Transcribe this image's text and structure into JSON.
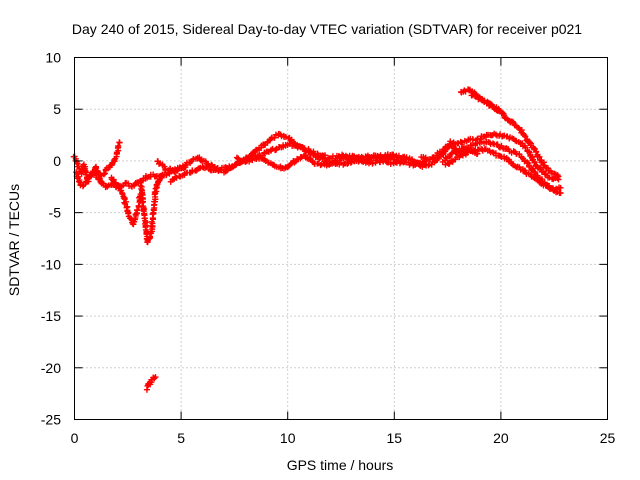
{
  "chart_data": {
    "type": "scatter",
    "title": "Day 240 of 2015, Sidereal Day-to-day VTEC variation (SDTVAR) for receiver p021",
    "xlabel": "GPS time / hours",
    "ylabel": "SDTVAR / TECUs",
    "xlim": [
      0,
      25
    ],
    "ylim": [
      -25,
      10
    ],
    "xticks": [
      0,
      5,
      10,
      15,
      20,
      25
    ],
    "yticks": [
      10,
      5,
      0,
      -5,
      -10,
      -15,
      -20,
      -25
    ],
    "marker": "+",
    "grid": true,
    "series": [
      {
        "name": "SDTVAR",
        "color": "#ff0000",
        "tracks": [
          {
            "points": [
              [
                0.0,
                0.5
              ],
              [
                0.15,
                -0.5
              ],
              [
                0.3,
                -1.2
              ],
              [
                0.45,
                -0.4
              ],
              [
                0.6,
                -1.8
              ],
              [
                0.8,
                -1.2
              ],
              [
                1.0,
                -0.6
              ],
              [
                1.2,
                -1.5
              ],
              [
                1.4,
                -1.1
              ],
              [
                1.6,
                -0.7
              ],
              [
                1.8,
                -0.2
              ],
              [
                2.0,
                0.6
              ],
              [
                2.1,
                1.8
              ]
            ]
          },
          {
            "points": [
              [
                0.05,
                -1.0
              ],
              [
                0.3,
                -2.4
              ],
              [
                0.6,
                -2.0
              ],
              [
                0.9,
                -1.0
              ],
              [
                1.2,
                -2.0
              ],
              [
                1.5,
                -2.5
              ],
              [
                1.8,
                -2.2
              ],
              [
                2.1,
                -2.6
              ],
              [
                2.4,
                -2.2
              ],
              [
                2.7,
                -2.4
              ],
              [
                3.0,
                -2.0
              ],
              [
                3.3,
                -1.6
              ],
              [
                3.6,
                -1.4
              ],
              [
                4.0,
                -1.5
              ],
              [
                4.4,
                -1.2
              ],
              [
                4.8,
                -0.8
              ],
              [
                5.2,
                -0.6
              ]
            ]
          },
          {
            "points": [
              [
                1.7,
                -1.6
              ],
              [
                2.0,
                -2.3
              ],
              [
                2.3,
                -3.5
              ],
              [
                2.55,
                -5.2
              ],
              [
                2.75,
                -6.1
              ],
              [
                2.95,
                -5.0
              ],
              [
                3.1,
                -3.2
              ]
            ]
          },
          {
            "points": [
              [
                3.1,
                -2.0
              ],
              [
                3.2,
                -4.0
              ],
              [
                3.35,
                -6.5
              ],
              [
                3.45,
                -7.9
              ],
              [
                3.6,
                -6.8
              ],
              [
                3.7,
                -4.8
              ],
              [
                3.8,
                -3.0
              ],
              [
                3.95,
                -1.8
              ],
              [
                4.1,
                -1.5
              ]
            ]
          },
          {
            "points": [
              [
                3.9,
                0.0
              ],
              [
                4.3,
                -0.8
              ],
              [
                4.8,
                -1.0
              ],
              [
                5.3,
                -0.2
              ],
              [
                5.8,
                0.3
              ],
              [
                6.3,
                -0.4
              ],
              [
                6.8,
                -0.8
              ],
              [
                7.3,
                -0.5
              ],
              [
                7.8,
                -0.1
              ],
              [
                8.3,
                0.6
              ],
              [
                8.8,
                1.4
              ],
              [
                9.3,
                2.2
              ],
              [
                9.6,
                2.6
              ]
            ]
          },
          {
            "points": [
              [
                4.5,
                -2.0
              ],
              [
                5.0,
                -1.4
              ],
              [
                5.5,
                -1.0
              ],
              [
                6.0,
                -0.6
              ],
              [
                6.5,
                -0.9
              ],
              [
                7.0,
                -1.0
              ],
              [
                7.5,
                -0.5
              ],
              [
                8.0,
                0.2
              ],
              [
                8.5,
                0.4
              ],
              [
                9.0,
                0.8
              ],
              [
                9.5,
                1.2
              ],
              [
                10.0,
                1.6
              ],
              [
                10.5,
                1.5
              ],
              [
                11.0,
                0.8
              ],
              [
                11.5,
                0.3
              ],
              [
                12.0,
                -0.2
              ],
              [
                12.5,
                -0.3
              ],
              [
                13.0,
                -0.1
              ]
            ]
          },
          {
            "points": [
              [
                7.6,
                0.4
              ],
              [
                8.0,
                -0.2
              ],
              [
                8.5,
                0.3
              ],
              [
                9.0,
                0.0
              ],
              [
                9.5,
                -0.6
              ],
              [
                9.9,
                -0.7
              ],
              [
                10.2,
                -0.2
              ],
              [
                10.8,
                0.5
              ],
              [
                11.3,
                -0.2
              ],
              [
                11.8,
                -0.4
              ],
              [
                12.3,
                0.0
              ],
              [
                12.8,
                0.4
              ],
              [
                13.3,
                0.2
              ],
              [
                13.8,
                -0.2
              ],
              [
                14.3,
                0.0
              ],
              [
                14.8,
                -0.2
              ],
              [
                15.3,
                -0.1
              ]
            ]
          },
          {
            "points": [
              [
                9.6,
                2.6
              ],
              [
                10.0,
                2.2
              ],
              [
                10.5,
                1.4
              ],
              [
                11.0,
                1.0
              ],
              [
                11.5,
                0.6
              ],
              [
                12.0,
                0.3
              ],
              [
                12.5,
                0.5
              ],
              [
                13.0,
                0.4
              ],
              [
                13.5,
                0.3
              ],
              [
                14.0,
                0.5
              ],
              [
                14.5,
                0.3
              ],
              [
                15.0,
                0.2
              ],
              [
                15.5,
                -0.2
              ],
              [
                16.0,
                -0.4
              ],
              [
                16.5,
                0.0
              ]
            ]
          },
          {
            "points": [
              [
                12.8,
                0.1
              ],
              [
                13.3,
                0.0
              ],
              [
                13.8,
                0.2
              ],
              [
                14.3,
                0.4
              ],
              [
                14.8,
                0.6
              ],
              [
                15.3,
                0.4
              ],
              [
                15.8,
                0.2
              ],
              [
                16.3,
                -0.5
              ],
              [
                16.8,
                -0.2
              ],
              [
                17.2,
                0.5
              ],
              [
                17.6,
                1.8
              ],
              [
                17.9,
                1.0
              ],
              [
                18.2,
                0.8
              ],
              [
                18.5,
                1.1
              ],
              [
                18.9,
                0.7
              ]
            ]
          },
          {
            "points": [
              [
                16.3,
                0.4
              ],
              [
                16.7,
                0.2
              ],
              [
                17.0,
                0.6
              ],
              [
                17.4,
                1.2
              ],
              [
                17.8,
                1.7
              ],
              [
                18.3,
                1.9
              ],
              [
                18.8,
                2.1
              ],
              [
                19.3,
                2.4
              ],
              [
                19.7,
                2.6
              ],
              [
                20.1,
                2.4
              ],
              [
                20.5,
                2.2
              ],
              [
                20.9,
                1.8
              ],
              [
                21.3,
                0.9
              ],
              [
                21.6,
                -0.2
              ],
              [
                21.9,
                -1.0
              ],
              [
                22.3,
                -1.6
              ],
              [
                22.7,
                -1.8
              ]
            ]
          },
          {
            "points": [
              [
                17.3,
                0.0
              ],
              [
                17.7,
                0.7
              ],
              [
                18.2,
                1.2
              ],
              [
                18.7,
                1.5
              ],
              [
                19.2,
                1.8
              ],
              [
                19.7,
                1.6
              ],
              [
                20.1,
                1.3
              ],
              [
                20.5,
                0.9
              ],
              [
                20.9,
                0.5
              ],
              [
                21.3,
                -0.4
              ],
              [
                21.7,
                -1.4
              ],
              [
                22.1,
                -2.3
              ],
              [
                22.5,
                -2.8
              ],
              [
                22.8,
                -2.6
              ]
            ]
          },
          {
            "points": [
              [
                17.4,
                -0.3
              ],
              [
                17.9,
                0.2
              ],
              [
                18.4,
                0.8
              ],
              [
                18.9,
                1.1
              ],
              [
                19.4,
                1.0
              ],
              [
                19.8,
                0.6
              ],
              [
                20.2,
                0.3
              ],
              [
                20.6,
                -0.4
              ],
              [
                21.0,
                -0.8
              ],
              [
                21.4,
                -1.4
              ],
              [
                21.8,
                -2.0
              ],
              [
                22.2,
                -2.5
              ],
              [
                22.6,
                -2.9
              ],
              [
                22.8,
                -3.1
              ]
            ]
          },
          {
            "points": [
              [
                18.1,
                6.6
              ],
              [
                18.5,
                6.9
              ],
              [
                18.9,
                6.3
              ],
              [
                19.3,
                5.7
              ],
              [
                19.7,
                5.1
              ],
              [
                20.0,
                4.7
              ],
              [
                20.3,
                4.1
              ],
              [
                20.6,
                3.6
              ],
              [
                20.9,
                3.0
              ],
              [
                21.2,
                2.2
              ],
              [
                21.5,
                1.3
              ],
              [
                21.8,
                0.3
              ],
              [
                22.1,
                -0.6
              ],
              [
                22.4,
                -1.2
              ],
              [
                22.7,
                -1.5
              ]
            ]
          },
          {
            "points": [
              [
                18.6,
                6.5
              ],
              [
                19.0,
                6.0
              ],
              [
                19.4,
                5.6
              ],
              [
                19.8,
                5.1
              ],
              [
                20.1,
                4.6
              ]
            ]
          },
          {
            "points": [
              [
                3.4,
                -22.0
              ],
              [
                3.5,
                -21.6
              ],
              [
                3.6,
                -21.3
              ],
              [
                3.7,
                -21.0
              ],
              [
                3.8,
                -20.9
              ]
            ]
          }
        ]
      }
    ]
  }
}
